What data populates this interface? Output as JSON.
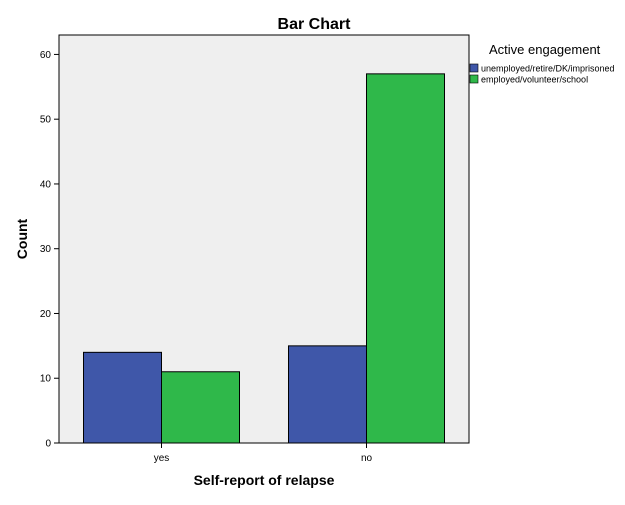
{
  "chart_data": {
    "type": "bar",
    "title": "Bar Chart",
    "xlabel": "Self-report of relapse",
    "ylabel": "Count",
    "categories": [
      "yes",
      "no"
    ],
    "series": [
      {
        "name": "unemployed/retire/DK/imprisoned",
        "color": "#3f57a9",
        "values": [
          14,
          15
        ]
      },
      {
        "name": "employed/volunteer/school",
        "color": "#2fb84a",
        "values": [
          11,
          57
        ]
      }
    ],
    "ylim": [
      0,
      63
    ],
    "yticks": [
      0,
      10,
      20,
      30,
      40,
      50,
      60
    ],
    "grid": false,
    "plot_background": "#efefef",
    "legend": {
      "title": "Active engagement",
      "position": "top-right"
    }
  }
}
